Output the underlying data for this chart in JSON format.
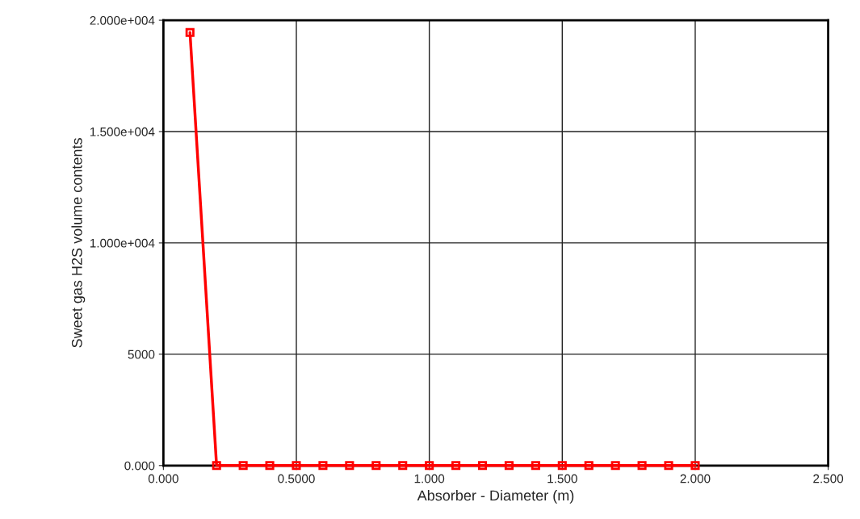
{
  "chart_data": {
    "type": "line",
    "xlabel": "Absorber - Diameter (m)",
    "ylabel": "Sweet gas H2S volume contents",
    "x": [
      0.1,
      0.2,
      0.3,
      0.4,
      0.5,
      0.6,
      0.7,
      0.8,
      0.9,
      1.0,
      1.1,
      1.2,
      1.3,
      1.4,
      1.5,
      1.6,
      1.7,
      1.8,
      1.9,
      2.0
    ],
    "series": [
      {
        "color": "#ff0000",
        "values": [
          19450,
          0,
          0,
          0,
          0,
          0,
          0,
          0,
          0,
          0,
          0,
          0,
          0,
          0,
          0,
          0,
          0,
          0,
          0,
          0
        ]
      }
    ],
    "xlim": [
      0,
      2.5
    ],
    "xticks": [
      {
        "value": 0,
        "label": "0.000"
      },
      {
        "value": 0.5,
        "label": "0.5000"
      },
      {
        "value": 1,
        "label": "1.000"
      },
      {
        "value": 1.5,
        "label": "1.500"
      },
      {
        "value": 2,
        "label": "2.000"
      },
      {
        "value": 2.5,
        "label": "2.500"
      }
    ],
    "ylim": [
      0,
      20000
    ],
    "yticks": [
      {
        "value": 0,
        "label": "0.000"
      },
      {
        "value": 5000,
        "label": "5000"
      },
      {
        "value": 10000,
        "label": "1.000e+004"
      },
      {
        "value": 15000,
        "label": "1.500e+004"
      },
      {
        "value": 20000,
        "label": "2.000e+004"
      }
    ],
    "grid": true,
    "marker": "square",
    "line_style": "solid"
  }
}
